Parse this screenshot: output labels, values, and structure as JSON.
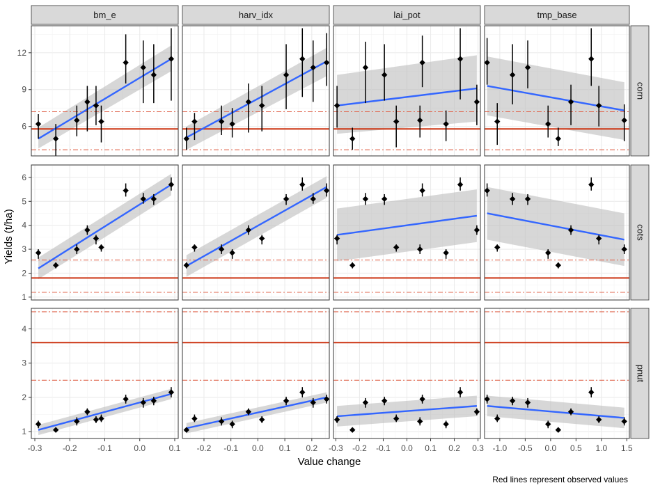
{
  "chart_data": {
    "type": "scatter",
    "xlabel": "Value change",
    "ylabel": "Yields (t/ha)",
    "caption": "Red lines represent observed values",
    "columns": [
      {
        "label": "bm_e",
        "xlim": [
          -0.31,
          0.11
        ],
        "ticks": [
          -0.3,
          -0.2,
          -0.1,
          0.0,
          0.1
        ],
        "tick_labels": [
          "-0.3",
          "-0.2",
          "-0.1",
          "0.0",
          "0.1"
        ],
        "x": [
          -0.29,
          -0.24,
          -0.18,
          -0.15,
          -0.125,
          -0.11,
          -0.04,
          0.01,
          0.04,
          0.09
        ]
      },
      {
        "label": "harv_idx",
        "xlim": [
          -0.28,
          0.265
        ],
        "ticks": [
          -0.2,
          -0.1,
          0.0,
          0.1,
          0.2
        ],
        "tick_labels": [
          "-0.2",
          "-0.1",
          "0.0",
          "0.1",
          "0.2"
        ],
        "x": [
          -0.265,
          -0.235,
          -0.135,
          -0.095,
          -0.035,
          0.015,
          0.105,
          0.165,
          0.205,
          0.255
        ]
      },
      {
        "label": "lai_pot",
        "xlim": [
          -0.31,
          0.31
        ],
        "ticks": [
          -0.3,
          -0.2,
          -0.1,
          0.0,
          0.1,
          0.2,
          0.3
        ],
        "tick_labels": [
          "-0.3",
          "-0.2",
          "-0.1",
          "0.0",
          "0.1",
          "0.2",
          "0.3"
        ],
        "x": [
          -0.295,
          -0.23,
          -0.175,
          -0.095,
          -0.045,
          0.055,
          0.065,
          0.165,
          0.225,
          0.295
        ]
      },
      {
        "label": "tmp_base",
        "xlim": [
          -1.3,
          1.55
        ],
        "ticks": [
          -1.0,
          -0.5,
          0.0,
          0.5,
          1.0,
          1.5
        ],
        "tick_labels": [
          "-1.0",
          "-0.5",
          "0.0",
          "0.5",
          "1.0",
          "1.5"
        ],
        "x": [
          -1.25,
          -1.05,
          -0.75,
          -0.45,
          -0.05,
          0.15,
          0.4,
          0.8,
          0.95,
          1.45
        ]
      }
    ],
    "rows": [
      {
        "label": "corn",
        "ylim": [
          3.6,
          14.2
        ],
        "ticks": [
          6,
          9,
          12
        ],
        "tick_labels": [
          "6",
          "9",
          "12"
        ],
        "observed": {
          "mean": 5.8,
          "lower": 4.1,
          "upper": 7.2
        },
        "points": [
          [
            [
              6.2,
              5.0,
              7.0
            ],
            [
              5.0,
              3.6,
              6.2
            ],
            [
              6.5,
              5.2,
              7.7
            ],
            [
              8.0,
              5.6,
              9.3
            ],
            [
              7.7,
              6.1,
              9.3
            ],
            [
              6.4,
              4.7,
              7.7
            ],
            [
              11.2,
              9.5,
              13.5
            ],
            [
              10.8,
              7.9,
              13.0
            ],
            [
              10.2,
              7.9,
              12.7
            ],
            [
              11.5,
              8.1,
              14.0
            ]
          ],
          [
            [
              5.0,
              4.1,
              5.9
            ],
            [
              6.4,
              4.9,
              7.1
            ],
            [
              6.4,
              5.3,
              7.7
            ],
            [
              6.2,
              5.1,
              7.5
            ],
            [
              8.0,
              5.5,
              9.5
            ],
            [
              7.7,
              5.6,
              9.3
            ],
            [
              10.2,
              7.4,
              12.7
            ],
            [
              11.5,
              8.4,
              14.0
            ],
            [
              10.8,
              8.0,
              13.0
            ],
            [
              11.2,
              9.3,
              13.6
            ]
          ],
          [
            [
              7.7,
              5.9,
              9.3
            ],
            [
              5.0,
              4.1,
              5.9
            ],
            [
              10.8,
              7.9,
              12.9
            ],
            [
              10.2,
              8.1,
              12.7
            ],
            [
              6.4,
              4.3,
              7.7
            ],
            [
              6.5,
              5.1,
              7.7
            ],
            [
              11.2,
              9.2,
              13.4
            ],
            [
              6.2,
              4.8,
              7.3
            ],
            [
              11.5,
              8.2,
              14.0
            ],
            [
              8.0,
              6.1,
              9.4
            ]
          ],
          [
            [
              11.2,
              9.4,
              13.2
            ],
            [
              6.4,
              4.5,
              7.9
            ],
            [
              10.2,
              7.8,
              12.7
            ],
            [
              10.8,
              9.1,
              13.0
            ],
            [
              6.2,
              5.1,
              7.7
            ],
            [
              5.0,
              4.4,
              5.9
            ],
            [
              8.0,
              6.1,
              9.4
            ],
            [
              11.5,
              9.3,
              14.0
            ],
            [
              7.7,
              6.0,
              9.3
            ],
            [
              6.5,
              4.8,
              7.8
            ]
          ]
        ],
        "trend": [
          {
            "y0": 5.0,
            "y1": 11.5,
            "band0": [
              4.2,
              5.9
            ],
            "band1": [
              10.5,
              12.6
            ]
          },
          {
            "y0": 5.1,
            "y1": 11.3,
            "band0": [
              4.1,
              6.0
            ],
            "band1": [
              10.1,
              12.4
            ]
          },
          {
            "y0": 7.7,
            "y1": 9.1,
            "band0": [
              5.4,
              10.2
            ],
            "band1": [
              6.4,
              11.8
            ]
          },
          {
            "y0": 9.3,
            "y1": 7.3,
            "band0": [
              6.9,
              11.7
            ],
            "band1": [
              4.9,
              9.6
            ]
          }
        ]
      },
      {
        "label": "cots",
        "ylim": [
          0.88,
          6.52
        ],
        "ticks": [
          1,
          2,
          3,
          4,
          5,
          6
        ],
        "tick_labels": [
          "1",
          "2",
          "3",
          "4",
          "5",
          "6"
        ],
        "observed": {
          "mean": 1.8,
          "lower": 1.2,
          "upper": 2.55
        },
        "points": [
          [
            [
              2.85,
              2.6,
              3.0
            ],
            [
              2.33,
              2.2,
              2.45
            ],
            [
              3.0,
              2.8,
              3.2
            ],
            [
              3.8,
              3.6,
              4.0
            ],
            [
              3.45,
              3.2,
              3.6
            ],
            [
              3.08,
              2.9,
              3.2
            ],
            [
              5.45,
              5.2,
              5.75
            ],
            [
              5.1,
              4.9,
              5.35
            ],
            [
              5.1,
              4.85,
              5.3
            ],
            [
              5.7,
              5.45,
              6.0
            ]
          ],
          [
            [
              2.33,
              2.2,
              2.45
            ],
            [
              3.08,
              2.9,
              3.2
            ],
            [
              3.0,
              2.8,
              3.2
            ],
            [
              2.85,
              2.6,
              3.0
            ],
            [
              3.8,
              3.6,
              4.0
            ],
            [
              3.45,
              3.2,
              3.6
            ],
            [
              5.1,
              4.85,
              5.3
            ],
            [
              5.7,
              5.45,
              6.0
            ],
            [
              5.1,
              4.9,
              5.35
            ],
            [
              5.45,
              5.2,
              5.75
            ]
          ],
          [
            [
              3.45,
              3.2,
              3.6
            ],
            [
              2.33,
              2.2,
              2.45
            ],
            [
              5.1,
              4.85,
              5.35
            ],
            [
              5.1,
              4.85,
              5.3
            ],
            [
              3.08,
              2.9,
              3.2
            ],
            [
              3.0,
              2.8,
              3.2
            ],
            [
              5.45,
              5.2,
              5.75
            ],
            [
              2.85,
              2.6,
              3.0
            ],
            [
              5.7,
              5.45,
              6.0
            ],
            [
              3.8,
              3.6,
              4.0
            ]
          ],
          [
            [
              5.45,
              5.2,
              5.75
            ],
            [
              3.08,
              2.9,
              3.2
            ],
            [
              5.1,
              4.85,
              5.35
            ],
            [
              5.1,
              4.85,
              5.3
            ],
            [
              2.85,
              2.6,
              3.0
            ],
            [
              2.33,
              2.2,
              2.45
            ],
            [
              3.8,
              3.6,
              4.0
            ],
            [
              5.7,
              5.45,
              6.0
            ],
            [
              3.45,
              3.2,
              3.6
            ],
            [
              3.0,
              2.8,
              3.2
            ]
          ]
        ],
        "trend": [
          {
            "y0": 2.2,
            "y1": 5.7,
            "band0": [
              1.75,
              2.65
            ],
            "band1": [
              5.25,
              6.15
            ]
          },
          {
            "y0": 2.3,
            "y1": 5.6,
            "band0": [
              1.85,
              2.75
            ],
            "band1": [
              5.15,
              6.05
            ]
          },
          {
            "y0": 3.6,
            "y1": 4.4,
            "band0": [
              2.5,
              4.7
            ],
            "band1": [
              3.3,
              5.5
            ]
          },
          {
            "y0": 4.5,
            "y1": 3.4,
            "band0": [
              3.4,
              5.6
            ],
            "band1": [
              2.3,
              4.5
            ]
          }
        ]
      },
      {
        "label": "pnut",
        "ylim": [
          0.8,
          4.6
        ],
        "ticks": [
          1,
          2,
          3,
          4
        ],
        "tick_labels": [
          "1",
          "2",
          "3",
          "4"
        ],
        "observed": {
          "mean": 3.6,
          "lower": 2.5,
          "upper": 4.5
        },
        "points": [
          [
            [
              1.22,
              1.1,
              1.32
            ],
            [
              1.05,
              0.98,
              1.12
            ],
            [
              1.3,
              1.18,
              1.42
            ],
            [
              1.58,
              1.48,
              1.68
            ],
            [
              1.35,
              1.25,
              1.45
            ],
            [
              1.38,
              1.28,
              1.5
            ],
            [
              1.95,
              1.82,
              2.08
            ],
            [
              1.85,
              1.7,
              1.98
            ],
            [
              1.9,
              1.77,
              2.02
            ],
            [
              2.15,
              2.0,
              2.3
            ]
          ],
          [
            [
              1.05,
              0.98,
              1.12
            ],
            [
              1.38,
              1.28,
              1.5
            ],
            [
              1.3,
              1.18,
              1.42
            ],
            [
              1.22,
              1.1,
              1.32
            ],
            [
              1.58,
              1.48,
              1.68
            ],
            [
              1.35,
              1.25,
              1.45
            ],
            [
              1.9,
              1.77,
              2.02
            ],
            [
              2.15,
              2.0,
              2.3
            ],
            [
              1.85,
              1.7,
              1.98
            ],
            [
              1.95,
              1.82,
              2.08
            ]
          ],
          [
            [
              1.35,
              1.25,
              1.45
            ],
            [
              1.05,
              0.98,
              1.12
            ],
            [
              1.85,
              1.7,
              1.98
            ],
            [
              1.9,
              1.77,
              2.02
            ],
            [
              1.38,
              1.28,
              1.5
            ],
            [
              1.3,
              1.18,
              1.42
            ],
            [
              1.95,
              1.82,
              2.08
            ],
            [
              1.22,
              1.1,
              1.32
            ],
            [
              2.15,
              2.0,
              2.3
            ],
            [
              1.58,
              1.48,
              1.68
            ]
          ],
          [
            [
              1.95,
              1.82,
              2.08
            ],
            [
              1.38,
              1.28,
              1.5
            ],
            [
              1.9,
              1.77,
              2.02
            ],
            [
              1.85,
              1.7,
              1.98
            ],
            [
              1.22,
              1.1,
              1.32
            ],
            [
              1.05,
              0.98,
              1.12
            ],
            [
              1.58,
              1.48,
              1.68
            ],
            [
              2.15,
              2.0,
              2.3
            ],
            [
              1.35,
              1.25,
              1.45
            ],
            [
              1.3,
              1.18,
              1.42
            ]
          ]
        ],
        "trend": [
          {
            "y0": 1.05,
            "y1": 2.1,
            "band0": [
              0.9,
              1.2
            ],
            "band1": [
              1.95,
              2.25
            ]
          },
          {
            "y0": 1.1,
            "y1": 2.0,
            "band0": [
              0.95,
              1.25
            ],
            "band1": [
              1.85,
              2.15
            ]
          },
          {
            "y0": 1.45,
            "y1": 1.75,
            "band0": [
              1.15,
              1.75
            ],
            "band1": [
              1.45,
              2.05
            ]
          },
          {
            "y0": 1.75,
            "y1": 1.4,
            "band0": [
              1.45,
              2.05
            ],
            "band1": [
              1.1,
              1.7
            ]
          }
        ]
      }
    ],
    "colors": {
      "points": "#000000",
      "trend": "#3366ff",
      "band": "#bdbdbd",
      "observed": "#cc3311",
      "observed_bounds": "#e0674f",
      "strip": "#d9d9d9",
      "grid": "#ebebeb"
    }
  }
}
